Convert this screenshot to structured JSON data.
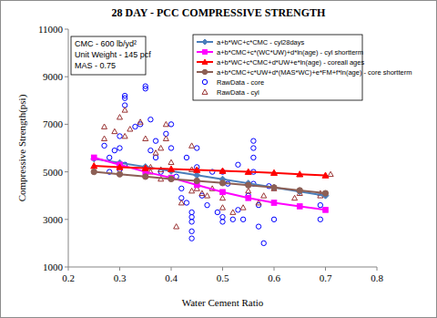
{
  "chart_data": {
    "type": "scatter",
    "title": "28 DAY - PCC COMPRESSIVE STRENGTH",
    "x_label": "Water Cement Ratio",
    "y_label": "Compressive Strength(psi)",
    "annotations": [
      "CMC - 600 lb/yd²",
      "Unit Weight - 145 pcf",
      "MAS - 0.75"
    ],
    "xlim": [
      0.2,
      0.8
    ],
    "xticks": [
      0.2,
      0.3,
      0.4,
      0.5,
      0.6,
      0.7,
      0.8
    ],
    "ylim": [
      1000,
      11000
    ],
    "yticks": [
      1000,
      3000,
      5000,
      7000,
      9000,
      11000
    ],
    "grid": false,
    "legend": "top-right",
    "series": [
      {
        "name": "a+b*WC+c*CMC - cyl28days",
        "type": "line",
        "marker": "diamond",
        "color": "#4a7ebb",
        "x": [
          0.25,
          0.3,
          0.35,
          0.4,
          0.45,
          0.5,
          0.55,
          0.6,
          0.65,
          0.7
        ],
        "values": [
          5550,
          5380,
          5210,
          5030,
          4860,
          4690,
          4520,
          4340,
          4170,
          4000
        ]
      },
      {
        "name": "a+b*CMC+c*(WC*UW)+d*ln(age) - cyl shortterm",
        "type": "line",
        "marker": "square",
        "color": "#ff00ff",
        "x": [
          0.25,
          0.3,
          0.35,
          0.4,
          0.45,
          0.5,
          0.55,
          0.6,
          0.65,
          0.7
        ],
        "values": [
          5600,
          5300,
          5000,
          4750,
          4450,
          4150,
          3900,
          3700,
          3550,
          3400
        ]
      },
      {
        "name": "a+b*WC+c*CMC+d*UW+e*ln(age) - coreall ages",
        "type": "line",
        "marker": "triangle",
        "color": "#ff0000",
        "x": [
          0.25,
          0.3,
          0.35,
          0.4,
          0.45,
          0.5,
          0.55,
          0.6,
          0.65,
          0.7
        ],
        "values": [
          5250,
          5200,
          5160,
          5120,
          5080,
          5040,
          5000,
          4960,
          4900,
          4850
        ]
      },
      {
        "name": "a+b*CMC+c*UW+d*(MAS*WC)+e*FM+f*ln(age) - core shortterm",
        "type": "line",
        "marker": "circle",
        "color": "#8c5f55",
        "x": [
          0.25,
          0.3,
          0.35,
          0.4,
          0.45,
          0.5,
          0.55,
          0.6,
          0.65,
          0.7
        ],
        "values": [
          5000,
          4900,
          4800,
          4700,
          4620,
          4530,
          4440,
          4340,
          4220,
          4100
        ]
      },
      {
        "name": "RawData - core",
        "type": "scatter",
        "marker": "open-circle",
        "color": "#0000ff",
        "x": [
          0.27,
          0.28,
          0.29,
          0.3,
          0.3,
          0.31,
          0.31,
          0.31,
          0.31,
          0.3,
          0.28,
          0.33,
          0.34,
          0.35,
          0.35,
          0.36,
          0.37,
          0.36,
          0.37,
          0.38,
          0.39,
          0.4,
          0.4,
          0.41,
          0.42,
          0.42,
          0.43,
          0.43,
          0.44,
          0.44,
          0.44,
          0.44,
          0.44,
          0.45,
          0.45,
          0.45,
          0.46,
          0.47,
          0.48,
          0.49,
          0.5,
          0.5,
          0.5,
          0.51,
          0.52,
          0.53,
          0.53,
          0.54,
          0.55,
          0.56,
          0.56,
          0.56,
          0.56,
          0.56,
          0.57,
          0.57,
          0.58,
          0.59,
          0.6,
          0.69,
          0.69
        ],
        "values": [
          6100,
          5600,
          5900,
          6500,
          6000,
          8200,
          8100,
          7800,
          5300,
          5100,
          5000,
          6900,
          7000,
          8500,
          8600,
          7200,
          6300,
          5900,
          5600,
          5000,
          6600,
          6000,
          7000,
          4800,
          4300,
          3900,
          5600,
          3700,
          3300,
          3100,
          2500,
          2200,
          2900,
          6000,
          5200,
          4600,
          4000,
          3600,
          5000,
          3300,
          3100,
          2900,
          5000,
          4500,
          3000,
          5300,
          3400,
          3000,
          4000,
          6300,
          6000,
          5600,
          5000,
          4500,
          3600,
          2700,
          2000,
          4400,
          3000,
          3000,
          3600
        ]
      },
      {
        "name": "RawData - cyl",
        "type": "scatter",
        "marker": "open-triangle",
        "color": "#993333",
        "x": [
          0.27,
          0.27,
          0.29,
          0.3,
          0.31,
          0.31,
          0.32,
          0.34,
          0.35,
          0.36,
          0.36,
          0.37,
          0.38,
          0.38,
          0.38,
          0.39,
          0.39,
          0.4,
          0.41,
          0.42,
          0.44,
          0.44,
          0.44,
          0.45,
          0.46,
          0.47,
          0.48,
          0.5,
          0.5,
          0.52,
          0.54,
          0.55,
          0.57,
          0.58,
          0.6,
          0.64,
          0.65,
          0.69,
          0.69,
          0.71
        ],
        "values": [
          6400,
          6900,
          6700,
          7300,
          7600,
          6500,
          6800,
          7100,
          6400,
          5200,
          5000,
          5800,
          6000,
          5100,
          4700,
          7000,
          6400,
          5400,
          2700,
          3700,
          5100,
          4200,
          6100,
          4300,
          4100,
          4000,
          4300,
          3900,
          3500,
          3300,
          3500,
          4200,
          3700,
          4000,
          4300,
          3900,
          4100,
          4100,
          4000,
          4900
        ]
      }
    ]
  }
}
